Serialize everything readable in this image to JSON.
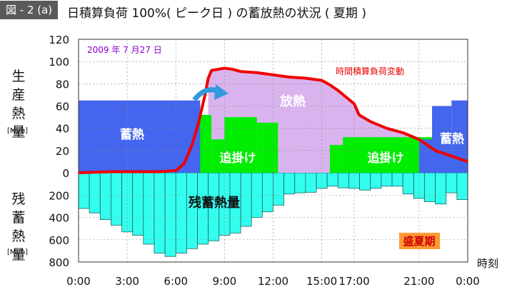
{
  "header": {
    "figure_label": "図 - 2 (a)",
    "title": "日積算負荷 100%( ピーク日 ) の蓄放熱の状況 ( 夏期 )"
  },
  "chart_data": {
    "type": "area",
    "title": "日積算負荷 100%( ピーク日 ) の蓄放熱の状況 ( 夏期 )",
    "date_label": "2009 年 7 月27 日",
    "season_badge": "盛夏期",
    "x_unit_label": "時刻",
    "upper_axis": {
      "label": "生産熱量",
      "unit": "[MJ/h]",
      "ylim": [
        0,
        120
      ],
      "ticks": [
        "0",
        "20",
        "40",
        "60",
        "80",
        "100",
        "120"
      ]
    },
    "lower_axis": {
      "label": "残蓄熱量",
      "unit": "[MJ/h]",
      "ylim": [
        0,
        800
      ],
      "ticks": [
        "200",
        "400",
        "600",
        "800"
      ]
    },
    "x_ticks": [
      "0:00",
      "3:00",
      "6:00",
      "9:00",
      "12:00",
      "15:00",
      "17:00",
      "21:00",
      "0:00"
    ],
    "x_hours": [
      0,
      3,
      6,
      9,
      12,
      15,
      17,
      21,
      24
    ],
    "region_labels": {
      "storage_left": "蓄熱",
      "storage_right": "蓄熱",
      "discharge": "放熱",
      "chase_left": "追掛け",
      "chase_right": "追掛け",
      "remaining": "残蓄熱量",
      "load_curve": "時間積算負荷変動"
    },
    "colors": {
      "storage": "#4466ee",
      "chase": "#00ee00",
      "discharge": "#d9b3ee",
      "remaining": "#33ffee",
      "load": "#ee0000",
      "arrow": "#3399dd",
      "badge": "#ff9933",
      "date": "#8800cc"
    },
    "storage_left": {
      "hours": [
        0,
        7.5
      ],
      "value": 65
    },
    "storage_right": [
      {
        "hours": [
          21,
          21.8
        ],
        "value": 30
      },
      {
        "hours": [
          21.8,
          23
        ],
        "value": 60
      },
      {
        "hours": [
          23,
          24
        ],
        "value": 65
      }
    ],
    "chase_steps": [
      {
        "hours": [
          6.3,
          8.2
        ],
        "value": 52
      },
      {
        "hours": [
          8.2,
          9
        ],
        "value": 30
      },
      {
        "hours": [
          9,
          11
        ],
        "value": 50
      },
      {
        "hours": [
          11,
          12.3
        ],
        "value": 45
      },
      {
        "hours": [
          12.3,
          15.5
        ],
        "value": 0
      },
      {
        "hours": [
          15.5,
          16.3
        ],
        "value": 25
      },
      {
        "hours": [
          16.3,
          24
        ],
        "value": 32
      }
    ],
    "load_curve": {
      "hours": [
        0,
        2,
        5,
        6,
        6.5,
        7,
        7.4,
        7.8,
        8,
        8.2,
        9,
        9.5,
        10,
        11,
        12,
        13,
        14,
        15,
        15.5,
        16,
        17,
        17.3,
        18,
        19,
        20,
        21,
        22,
        23,
        24
      ],
      "values": [
        0,
        1,
        1,
        2,
        8,
        25,
        45,
        70,
        85,
        92,
        94,
        93,
        91,
        90,
        88,
        86,
        85,
        83,
        79,
        74,
        62,
        52,
        46,
        40,
        36,
        30,
        20,
        15,
        10
      ]
    },
    "remaining_bars": [
      320,
      360,
      420,
      470,
      530,
      560,
      640,
      720,
      750,
      720,
      680,
      640,
      610,
      560,
      540,
      480,
      400,
      350,
      290,
      190,
      180,
      175,
      140,
      120,
      135,
      140,
      155,
      140,
      120,
      120,
      190,
      230,
      260,
      280,
      180,
      240
    ]
  }
}
